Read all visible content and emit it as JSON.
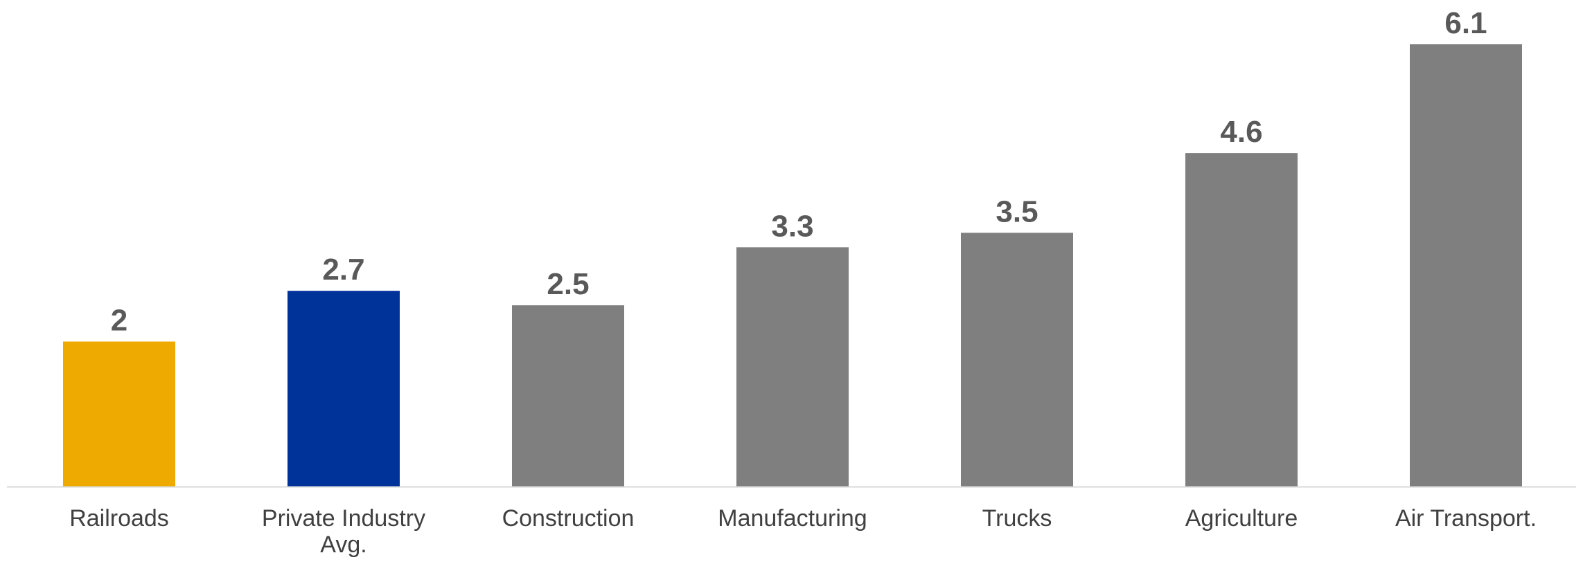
{
  "chart_data": {
    "type": "bar",
    "categories": [
      [
        "Railroads"
      ],
      [
        "Private Industry",
        "Avg."
      ],
      [
        "Construction"
      ],
      [
        "Manufacturing"
      ],
      [
        "Trucks"
      ],
      [
        "Agriculture"
      ],
      [
        "Air Transport."
      ]
    ],
    "values": [
      2,
      2.7,
      2.5,
      3.3,
      3.5,
      4.6,
      6.1
    ],
    "value_labels": [
      "2",
      "2.7",
      "2.5",
      "3.3",
      "3.5",
      "4.6",
      "6.1"
    ],
    "bar_colors": [
      "#EEAA00",
      "#003399",
      "#7F7F7F",
      "#7F7F7F",
      "#7F7F7F",
      "#7F7F7F",
      "#7F7F7F"
    ],
    "axis_color": "#D9D9D9",
    "ylim": [
      0,
      6.1
    ],
    "grid": false,
    "legend": "none",
    "title": "",
    "xlabel": "",
    "ylabel": ""
  }
}
